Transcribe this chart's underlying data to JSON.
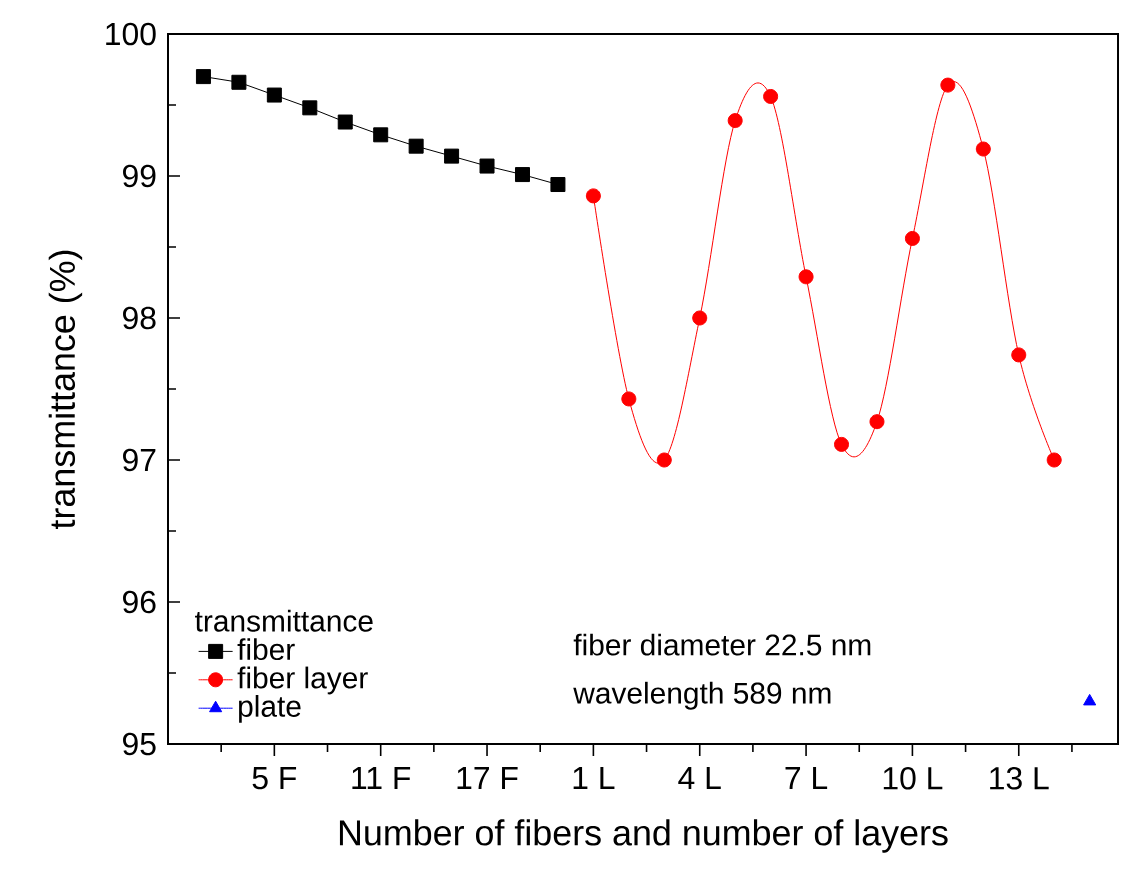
{
  "chart_data": {
    "type": "line",
    "xlabel": "Number of fibers and number of layers",
    "ylabel": "transmittance (%)",
    "legend_title": "transmittance",
    "categories": [
      null,
      null,
      "5 F",
      null,
      null,
      "11 F",
      null,
      null,
      "17 F",
      null,
      null,
      "1 L",
      null,
      null,
      "4 L",
      null,
      null,
      "7 L",
      null,
      null,
      "10 L",
      null,
      null,
      "13 L",
      null,
      null
    ],
    "ylim": [
      95,
      100
    ],
    "yticks": [
      95,
      {
        "value": 95.5,
        "label": null
      },
      96,
      {
        "value": 96.5,
        "label": null
      },
      97,
      {
        "value": 97.5,
        "label": null
      },
      98,
      {
        "value": 98.5,
        "label": null
      },
      99,
      {
        "value": 99.5,
        "label": null
      },
      100
    ],
    "legend": "bottom left",
    "series": [
      {
        "name": "fiber",
        "color": "#000000",
        "marker": "square",
        "values": [
          99.7,
          99.66,
          99.57,
          99.48,
          99.38,
          99.29,
          99.21,
          99.14,
          99.07,
          99.01,
          98.94,
          null,
          null,
          null,
          null,
          null,
          null,
          null,
          null,
          null,
          null,
          null,
          null,
          null,
          null,
          null
        ]
      },
      {
        "name": "fiber layer",
        "color": "#ff0000",
        "marker": "circle",
        "values": [
          null,
          null,
          null,
          null,
          null,
          null,
          null,
          null,
          null,
          null,
          null,
          98.86,
          97.43,
          97.0,
          98.0,
          99.39,
          99.56,
          98.29,
          97.11,
          97.27,
          98.56,
          99.64,
          99.19,
          97.74,
          97.0,
          null
        ]
      },
      {
        "name": "plate",
        "color": "#0000ff",
        "marker": "triangle",
        "values": [
          null,
          null,
          null,
          null,
          null,
          null,
          null,
          null,
          null,
          null,
          null,
          null,
          null,
          null,
          null,
          null,
          null,
          null,
          null,
          null,
          null,
          null,
          null,
          null,
          null,
          95.3
        ]
      }
    ],
    "annotations": [
      "fiber diameter 22.5 nm",
      "wavelength 589 nm"
    ]
  }
}
